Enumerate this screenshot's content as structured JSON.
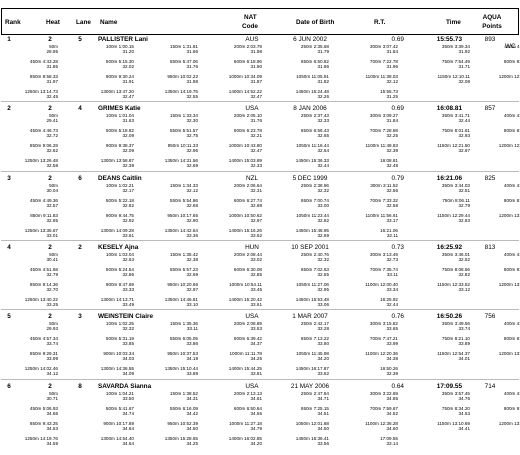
{
  "headers": {
    "rank": "Rank",
    "heat": "Heat",
    "lane": "Lane",
    "name": "Name",
    "nat": "NAT",
    "code": "Code",
    "dob": "Date of Birth",
    "rt": "R.T.",
    "time": "Time",
    "aqua": "AQUA",
    "points": "Points"
  },
  "athletes": [
    {
      "rank": "1",
      "heat": "2",
      "lane": "5",
      "name": "PALLISTER Lani",
      "nat": "AUS",
      "dob": "6 JUN 2002",
      "rt": "0.69",
      "time": "15:55.73",
      "points": "893",
      "note": "WC",
      "splits": [
        [
          "50m 28.95",
          "",
          "100m 1:00.15 31.20",
          "150m 1:31.81 31.66",
          "200m 2:03.79 31.98",
          "250m 2:35.58 31.79",
          "300m 3:07.42 31.84",
          "350m 3:39.34 31.92",
          "400m 4:11.43 32.09"
        ],
        [
          "450m 4:43.28 31.85",
          "",
          "500m 5:15.30 32.02",
          "550m 5:47.06 31.76",
          "600m 6:18.96 31.90",
          "650m 6:50.82 31.86",
          "700m 7:22.78 31.96",
          "750m 7:54.49 31.71",
          "800m 8:26.36 31.87"
        ],
        [
          "850m 8:58.33 31.97",
          "",
          "900m 9:30.24 31.91",
          "950m 10:02.22 31.98",
          "1000m 10:34.09 31.87",
          "1050m 11:05.91 31.82",
          "1100m 11:38.03 32.12",
          "1150m 12:10.11 32.08",
          "1200m 12:42.28 32.17"
        ],
        [
          "1250m 13:14.73 32.45",
          "",
          "1300m 13:47.20 32.47",
          "1350m 14:19.75 32.55",
          "1400m 14:52.22 32.47",
          "1450m 15:24.48 32.26",
          "15:55.73 31.25",
          "",
          ""
        ]
      ]
    },
    {
      "rank": "2",
      "heat": "2",
      "lane": "4",
      "name": "GRIMES Katie",
      "nat": "USA",
      "dob": "8 JAN 2006",
      "rt": "0.69",
      "time": "16:08.81",
      "points": "857",
      "note": "",
      "splits": [
        [
          "50m 29.41",
          "",
          "100m 1:01.04 31.63",
          "150m 1:33.34 32.30",
          "200m 2:05.10 31.76",
          "250m 2:37.43 32.33",
          "300m 3:09.27 31.84",
          "350m 3:41.71 32.44",
          "400m 4:14.01 32.30"
        ],
        [
          "450m 4:46.73 32.72",
          "",
          "500m 5:18.82 32.09",
          "550m 5:51.57 32.75",
          "600m 6:23.78 32.21",
          "650m 6:56.43 32.65",
          "700m 7:28.68 32.25",
          "750m 8:01.61 32.93",
          "800m 8:33.66 32.05"
        ],
        [
          "850m 9:06.28 32.62",
          "",
          "900m 9:38.37 32.09",
          "950m 10:11.33 32.96",
          "1000m 10:43.80 32.47",
          "1050m 11:16.44 32.64",
          "1100m 11:48.83 32.39",
          "1150m 12:21.50 32.67",
          "1200m 12:53.90 32.40"
        ],
        [
          "1250m 13:26.48 32.58",
          "",
          "1300m 13:58.87 32.39",
          "1350m 14:31.56 32.69",
          "1400m 15:03.89 32.33",
          "1450m 15:36.33 32.44",
          "16:08.81 32.48",
          "",
          ""
        ]
      ]
    },
    {
      "rank": "3",
      "heat": "2",
      "lane": "6",
      "name": "DEANS Caitlin",
      "nat": "NZL",
      "dob": "5 DEC 1999",
      "rt": "0.79",
      "time": "16:21.06",
      "points": "825",
      "note": "",
      "splits": [
        [
          "50m 30.04",
          "",
          "100m 1:02.21 32.17",
          "150m 1:34.33 32.12",
          "200m 2:06.64 32.31",
          "250m 2:38.96 32.32",
          "300m 3:11.52 32.56",
          "350m 3:44.03 32.51",
          "400m 4:16.79 32.76"
        ],
        [
          "450m 4:49.36 32.57",
          "",
          "500m 5:22.18 32.82",
          "550m 5:54.86 32.68",
          "600m 6:27.74 32.88",
          "650m 7:00.74 33.00",
          "700m 7:33.32 32.58",
          "750m 8:06.11 32.79",
          "800m 8:38.98 32.87"
        ],
        [
          "850m 9:11.83 32.85",
          "",
          "900m 9:44.75 32.92",
          "950m 10:17.65 32.90",
          "1000m 10:50.62 32.97",
          "1050m 11:23.44 32.82",
          "1100m 11:56.61 33.17",
          "1150m 12:29.44 32.83",
          "1200m 13:02.66 33.22"
        ],
        [
          "1250m 13:35.67 33.01",
          "",
          "1300m 14:09.28 33.61",
          "1350m 14:42.64 33.36",
          "1400m 15:16.26 33.62",
          "1450m 15:48.95 32.69",
          "16:21.06 32.11",
          "",
          ""
        ]
      ]
    },
    {
      "rank": "4",
      "heat": "2",
      "lane": "2",
      "name": "KESELY Ajna",
      "nat": "HUN",
      "dob": "10 SEP 2001",
      "rt": "0.73",
      "time": "16:25.92",
      "points": "813",
      "note": "",
      "splits": [
        [
          "50m 30.41",
          "",
          "100m 1:03.04 32.63",
          "150m 1:35.42 32.38",
          "200m 2:08.44 33.02",
          "250m 2:40.76 32.32",
          "300m 3:13.49 32.73",
          "350m 3:46.01 32.52",
          "400m 4:18.89 32.88"
        ],
        [
          "450m 4:51.68 32.79",
          "",
          "500m 5:24.54 32.86",
          "550m 5:57.23 32.69",
          "600m 6:30.08 32.85",
          "650m 7:02.63 32.55",
          "700m 7:35.74 33.11",
          "750m 8:08.56 32.82",
          "800m 8:41.66 33.10"
        ],
        [
          "850m 9:14.36 32.70",
          "",
          "900m 9:47.69 33.33",
          "950m 10:20.66 32.97",
          "1000m 10:54.11 33.45",
          "1050m 11:27.06 32.95",
          "1100m 12:00.40 33.34",
          "1150m 12:33.52 33.12",
          "1200m 13:06.97 33.45"
        ],
        [
          "1250m 13:40.22 33.25",
          "",
          "1300m 14:13.71 33.49",
          "1350m 14:46.81 33.10",
          "1400m 15:20.42 33.61",
          "1450m 15:53.48 33.06",
          "16:25.92 32.44",
          "",
          ""
        ]
      ]
    },
    {
      "rank": "5",
      "heat": "2",
      "lane": "3",
      "name": "WEINSTEIN Claire",
      "nat": "USA",
      "dob": "1 MAR 2007",
      "rt": "0.76",
      "time": "16:50.26",
      "points": "756",
      "note": "",
      "splits": [
        [
          "50m 29.93",
          "",
          "100m 1:02.25 32.32",
          "150m 1:35.36 33.11",
          "200m 2:08.89 33.53",
          "250m 2:42.17 33.28",
          "300m 3:15.82 33.65",
          "350m 3:49.56 33.74",
          "400m 4:23.60 34.04"
        ],
        [
          "450m 4:57.34 33.74",
          "",
          "500m 5:31.19 33.85",
          "550m 6:05.05 33.86",
          "600m 6:39.42 34.37",
          "650m 7:13.22 33.80",
          "700m 7:47.21 33.99",
          "750m 8:21.10 33.89",
          "800m 8:55.32 34.22"
        ],
        [
          "850m 9:29.31 33.99",
          "",
          "900m 10:03.34 34.03",
          "950m 10:37.53 34.19",
          "1000m 11:11.78 34.25",
          "1050m 11:45.98 34.20",
          "1100m 12:20.36 34.38",
          "1150m 12:54.37 34.01",
          "1200m 13:28.34 33.97"
        ],
        [
          "1250m 14:02.46 34.12",
          "",
          "1300m 14:36.55 34.09",
          "1350m 15:10.44 33.89",
          "1400m 15:44.25 33.81",
          "1450m 16:17.87 33.62",
          "16:50.26 32.39",
          "",
          ""
        ]
      ]
    },
    {
      "rank": "6",
      "heat": "2",
      "lane": "8",
      "name": "SAVARDA Sianna",
      "nat": "USA",
      "dob": "21 MAY 2006",
      "rt": "0.64",
      "time": "17:09.55",
      "points": "714",
      "note": "",
      "splits": [
        [
          "50m 30.71",
          "",
          "100m 1:04.21 33.50",
          "150m 1:38.52 34.31",
          "200m 2:13.13 34.61",
          "250m 2:47.84 34.71",
          "300m 3:22.69 34.85",
          "350m 3:57.45 34.76",
          "400m 4:32.27 34.82"
        ],
        [
          "450m 5:06.93 34.66",
          "",
          "500m 5:41.67 34.74",
          "550m 6:16.09 34.42",
          "600m 6:50.64 34.55",
          "650m 7:25.15 34.51",
          "700m 7:59.67 34.52",
          "750m 8:34.20 34.53",
          "800m 9:08.72 34.52"
        ],
        [
          "850m 9:43.25 34.53",
          "",
          "900m 10:17.89 34.64",
          "950m 10:52.39 34.50",
          "1000m 11:27.18 34.79",
          "1050m 12:01.68 34.50",
          "1100m 12:36.28 34.60",
          "1150m 13:10.69 34.41",
          "1200m 13:45.17 34.48"
        ],
        [
          "1250m 14:19.76 34.59",
          "",
          "1300m 14:54.40 34.64",
          "1350m 15:28.65 34.25",
          "1400m 16:02.85 34.20",
          "1450m 16:36.41 33.56",
          "17:09.55 33.14",
          "",
          ""
        ]
      ]
    }
  ]
}
